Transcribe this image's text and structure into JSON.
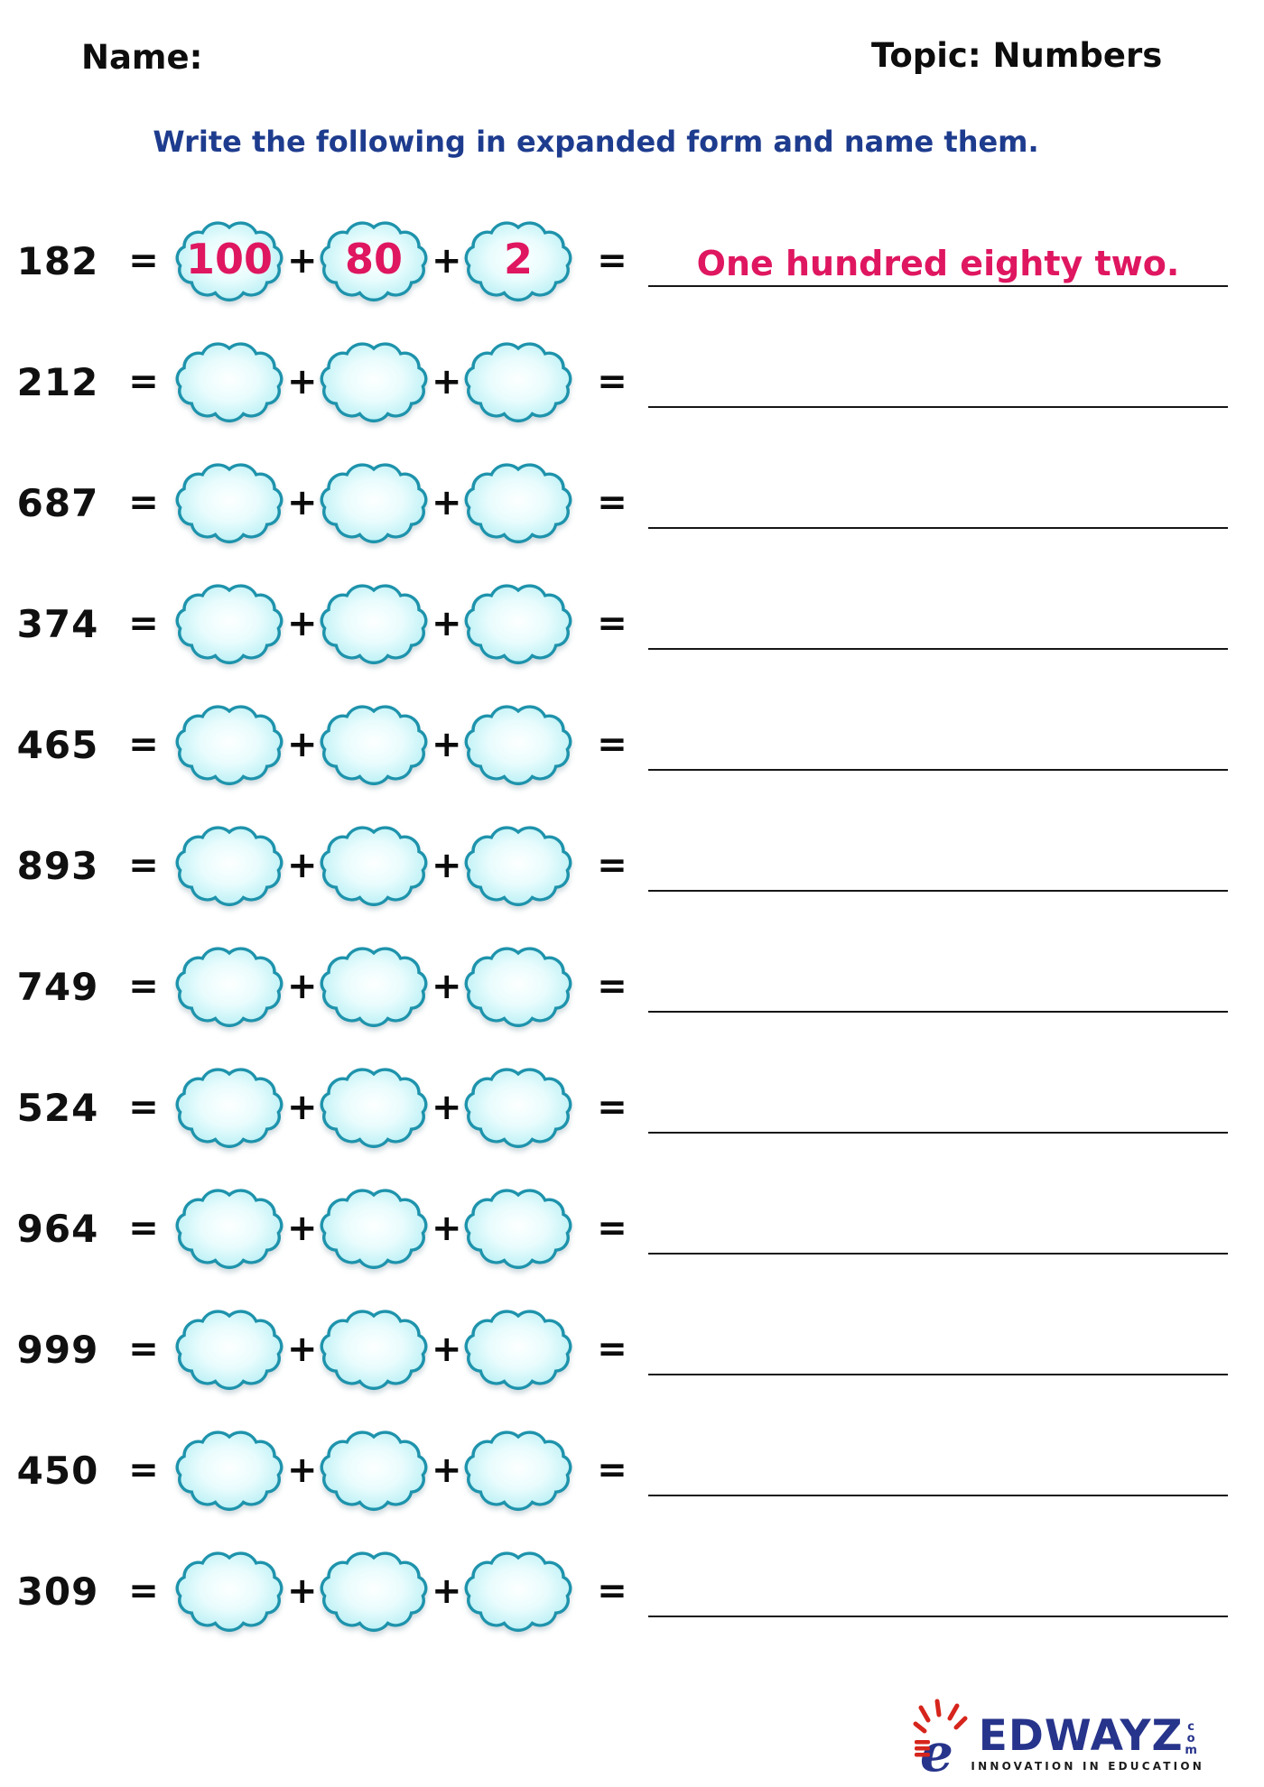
{
  "header": {
    "name_label": "Name:",
    "topic_label": "Topic: Numbers"
  },
  "title": "Write the following in expanded form and name them.",
  "symbols": {
    "equals": "=",
    "plus": "+"
  },
  "rows": [
    {
      "number": "182",
      "hundreds": "100",
      "tens": "80",
      "ones": "2",
      "name": "One hundred eighty two."
    },
    {
      "number": "212",
      "hundreds": "",
      "tens": "",
      "ones": "",
      "name": ""
    },
    {
      "number": "687",
      "hundreds": "",
      "tens": "",
      "ones": "",
      "name": ""
    },
    {
      "number": "374",
      "hundreds": "",
      "tens": "",
      "ones": "",
      "name": ""
    },
    {
      "number": "465",
      "hundreds": "",
      "tens": "",
      "ones": "",
      "name": ""
    },
    {
      "number": "893",
      "hundreds": "",
      "tens": "",
      "ones": "",
      "name": ""
    },
    {
      "number": "749",
      "hundreds": "",
      "tens": "",
      "ones": "",
      "name": ""
    },
    {
      "number": "524",
      "hundreds": "",
      "tens": "",
      "ones": "",
      "name": ""
    },
    {
      "number": "964",
      "hundreds": "",
      "tens": "",
      "ones": "",
      "name": ""
    },
    {
      "number": "999",
      "hundreds": "",
      "tens": "",
      "ones": "",
      "name": ""
    },
    {
      "number": "450",
      "hundreds": "",
      "tens": "",
      "ones": "",
      "name": ""
    },
    {
      "number": "309",
      "hundreds": "",
      "tens": "",
      "ones": "",
      "name": ""
    }
  ],
  "colors": {
    "accent_pink": "#DF1660",
    "title_blue": "#1E3C8E",
    "cloud_outline": "#1E93AC",
    "cloud_fill": "#AEEDF3",
    "logo_blue": "#27348B",
    "logo_red": "#D6251C"
  },
  "logo": {
    "icon": "e-lightbulb-icon",
    "brand": "EDWAYZ",
    "domain": "com",
    "tagline": "INNOVATION IN EDUCATION"
  }
}
